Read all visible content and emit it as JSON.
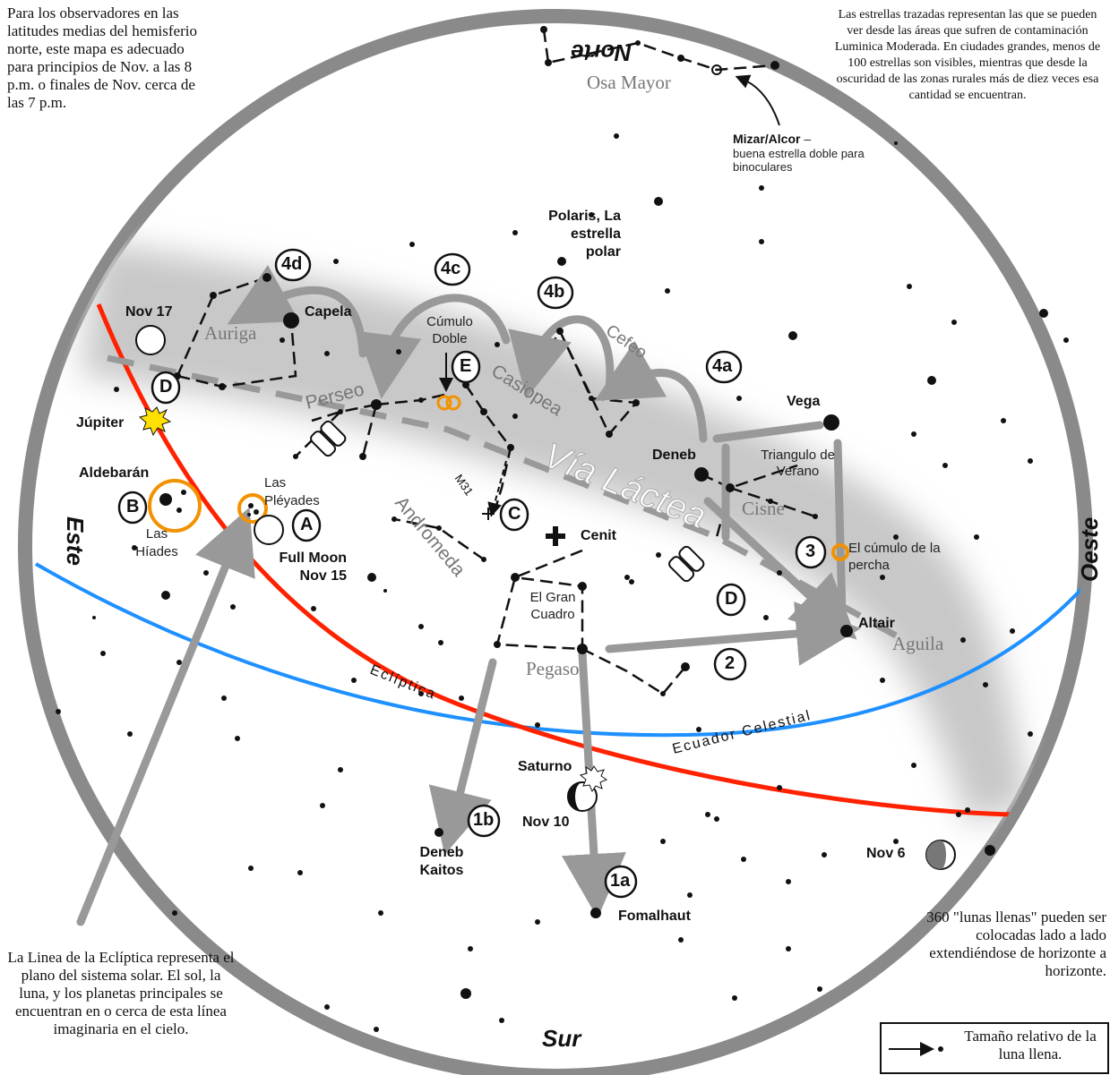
{
  "notes": {
    "top_left": "Para los observadores en las latitudes medias del hemisferio norte, este mapa es adecuado para principios de Nov. a las 8 p.m. o finales de Nov. cerca de las 7 p.m.",
    "top_right": "Las estrellas trazadas representan las que se pueden ver desde las áreas que sufren de contaminación Luminica Moderada. En ciudades grandes, menos de 100 estrellas son visibles, mientras que desde la oscuridad de las zonas rurales más de diez veces esa cantidad se encuentran.",
    "bottom_left": "La Linea de la Eclíptica representa el plano del sistema solar. El sol, la luna, y los planetas principales se encuentran en o cerca de esta línea imaginaria en el cielo.",
    "bottom_right": "360 \"lunas llenas\" pueden ser colocadas lado a lado extendiéndose de horizonte a horizonte.",
    "legend": "Tamaño relativo de la luna llena."
  },
  "directions": {
    "north": "Norte",
    "south": "Sur",
    "east": "Este",
    "west": "Oeste"
  },
  "constellations": {
    "ursa_major": "Osa Mayor",
    "auriga": "Auriga",
    "perseus": "Perseo",
    "cassiopeia": "Casiopea",
    "cepheus": "Cefeo",
    "milky_way": "Vía Láctea",
    "andromeda": "Andromeda",
    "cygnus": "Cisne",
    "aquila": "Aguila",
    "pegasus": "Pegaso"
  },
  "lines": {
    "ecliptic": "Eclíptica",
    "celestial_equator": "Ecuador Celestial"
  },
  "labels": {
    "mizar_title": "Mizar/Alcor",
    "mizar_dash": " –",
    "mizar_desc": "buena estrella doble para binoculares",
    "polaris": "Polaris, La estrella polar",
    "capela": "Capela",
    "nov17": "Nov 17",
    "jupiter": "Júpiter",
    "aldebaran": "Aldebarán",
    "hyades": "Las Híades",
    "pleiades": "Las Pléyades",
    "full_moon": "Full Moon Nov 15",
    "double_cluster": "Cúmulo Doble",
    "m31": "M31",
    "zenith": "Cenit",
    "great_square": "El Gran Cuadro",
    "vega": "Vega",
    "deneb": "Deneb",
    "summer_triangle": "Triangulo de Verano",
    "coathanger": "El cúmulo de la percha",
    "altair": "Altair",
    "saturn": "Saturno",
    "nov10": "Nov 10",
    "deneb_kaitos": "Deneb Kaitos",
    "fomalhaut": "Fomalhaut",
    "nov6": "Nov 6"
  },
  "markers": {
    "m1a": "1a",
    "m1b": "1b",
    "m2": "2",
    "m3": "3",
    "m4a": "4a",
    "m4b": "4b",
    "m4c": "4c",
    "m4d": "4d",
    "mA": "A",
    "mB": "B",
    "mC": "C",
    "mD1": "D",
    "mD2": "D",
    "mE": "E"
  },
  "colors": {
    "ecliptic": "#ff2200",
    "equator": "#1e90ff",
    "cluster": "#f39200",
    "arrow": "#999999",
    "rim": "#888888"
  }
}
